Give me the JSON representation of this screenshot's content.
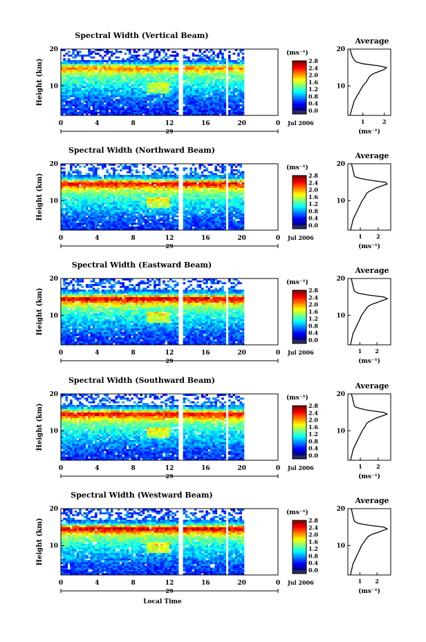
{
  "chart_data": [
    {
      "type": "heatmap",
      "title": "Spectral Width (Vertical Beam)",
      "ylabel": "Height (km)",
      "xlabel": "",
      "x_ticks": [
        "0",
        "4",
        "8",
        "12",
        "16",
        "20",
        "0"
      ],
      "y_ticks": [
        "20",
        "10"
      ],
      "date_day": "29",
      "date_label": "Jul 2006",
      "xlim": [
        0,
        24
      ],
      "ylim": [
        2,
        20
      ],
      "data_gaps_hours": [
        [
          12.9,
          13.5
        ],
        [
          18.3,
          18.6
        ],
        [
          20.2,
          24
        ]
      ],
      "colorbar": {
        "unit": "(ms⁻¹)",
        "ticks": [
          "2.8",
          "2.4",
          "2.0",
          "1.6",
          "1.2",
          "0.8",
          "0.4",
          "0.0"
        ],
        "min": 0.0,
        "max": 2.8
      },
      "profile": {
        "title": "Average",
        "xlabel": "(ms⁻¹)",
        "x_ticks": [
          "1",
          "2"
        ],
        "y_ticks": [
          "20",
          "10"
        ],
        "xlim": [
          0.3,
          2.3
        ],
        "heights": [
          2,
          3,
          4,
          5,
          6,
          7,
          8,
          9,
          10,
          11,
          12,
          12.5,
          13,
          13.5,
          14,
          14.5,
          15,
          15.5,
          16,
          16.5,
          17,
          18,
          19,
          20
        ],
        "values": [
          0.4,
          0.45,
          0.5,
          0.55,
          0.6,
          0.7,
          0.8,
          0.9,
          1.0,
          1.15,
          1.25,
          1.3,
          1.4,
          1.55,
          1.8,
          2.0,
          2.1,
          1.7,
          1.0,
          0.7,
          0.6,
          0.5,
          0.45,
          0.4
        ]
      }
    },
    {
      "type": "heatmap",
      "title": "Spectral Width (Northward Beam)",
      "ylabel": "Height (km)",
      "xlabel": "",
      "x_ticks": [
        "0",
        "4",
        "8",
        "12",
        "16",
        "20",
        "0"
      ],
      "y_ticks": [
        "20",
        "10"
      ],
      "date_day": "29",
      "date_label": "Jul 2006",
      "xlim": [
        0,
        24
      ],
      "ylim": [
        2,
        20
      ],
      "data_gaps_hours": [
        [
          12.9,
          13.5
        ],
        [
          18.3,
          18.6
        ],
        [
          20.2,
          24
        ]
      ],
      "colorbar": {
        "unit": "(ms⁻¹)",
        "ticks": [
          "2.8",
          "2.4",
          "2.0",
          "1.6",
          "1.2",
          "0.8",
          "0.4",
          "0.0"
        ],
        "min": 0.0,
        "max": 2.8
      },
      "profile": {
        "title": "Average",
        "xlabel": "(ms⁻¹)",
        "x_ticks": [
          "1",
          "2"
        ],
        "y_ticks": [
          "20",
          "10"
        ],
        "xlim": [
          0.3,
          2.7
        ],
        "heights": [
          2,
          3,
          4,
          5,
          6,
          7,
          8,
          9,
          10,
          11,
          12,
          12.5,
          13,
          13.5,
          14,
          14.5,
          15,
          15.5,
          16,
          16.5,
          17,
          18,
          19,
          20
        ],
        "values": [
          0.45,
          0.5,
          0.55,
          0.6,
          0.7,
          0.8,
          0.9,
          1.0,
          1.1,
          1.25,
          1.35,
          1.5,
          1.7,
          1.9,
          2.2,
          2.5,
          2.4,
          1.6,
          1.0,
          0.7,
          0.65,
          0.6,
          0.55,
          0.5
        ]
      }
    },
    {
      "type": "heatmap",
      "title": "Spectral Width (Eastward Beam)",
      "ylabel": "Height (km)",
      "xlabel": "",
      "x_ticks": [
        "0",
        "4",
        "8",
        "12",
        "16",
        "20",
        "0"
      ],
      "y_ticks": [
        "20",
        "10"
      ],
      "date_day": "29",
      "date_label": "Jul 2006",
      "xlim": [
        0,
        24
      ],
      "ylim": [
        2,
        20
      ],
      "data_gaps_hours": [
        [
          12.9,
          13.5
        ],
        [
          18.3,
          18.6
        ],
        [
          20.2,
          24
        ]
      ],
      "colorbar": {
        "unit": "(ms⁻¹)",
        "ticks": [
          "2.8",
          "2.4",
          "2.0",
          "1.6",
          "1.2",
          "0.8",
          "0.4",
          "0.0"
        ],
        "min": 0.0,
        "max": 2.8
      },
      "profile": {
        "title": "Average",
        "xlabel": "(ms⁻¹)",
        "x_ticks": [
          "1",
          "2"
        ],
        "y_ticks": [
          "20",
          "10"
        ],
        "xlim": [
          0.3,
          2.8
        ],
        "heights": [
          2,
          3,
          4,
          5,
          6,
          7,
          8,
          9,
          10,
          11,
          12,
          12.5,
          13,
          13.5,
          14,
          14.5,
          15,
          15.5,
          16,
          16.5,
          17,
          18,
          19,
          20
        ],
        "values": [
          0.45,
          0.5,
          0.55,
          0.6,
          0.7,
          0.8,
          0.9,
          1.0,
          1.1,
          1.25,
          1.4,
          1.5,
          1.7,
          2.0,
          2.3,
          2.6,
          2.4,
          1.5,
          0.9,
          0.7,
          0.65,
          0.6,
          0.55,
          0.5
        ]
      }
    },
    {
      "type": "heatmap",
      "title": "Spectral Width (Southward Beam)",
      "ylabel": "Height (km)",
      "xlabel": "",
      "x_ticks": [
        "0",
        "4",
        "8",
        "12",
        "16",
        "20",
        "0"
      ],
      "y_ticks": [
        "20",
        "10"
      ],
      "date_day": "29",
      "date_label": "Jul 2006",
      "xlim": [
        0,
        24
      ],
      "ylim": [
        2,
        20
      ],
      "data_gaps_hours": [
        [
          12.9,
          13.5
        ],
        [
          18.3,
          18.6
        ],
        [
          20.2,
          24
        ]
      ],
      "colorbar": {
        "unit": "(ms⁻¹)",
        "ticks": [
          "2.8",
          "2.4",
          "2.0",
          "1.6",
          "1.2",
          "0.8",
          "0.4",
          "0.0"
        ],
        "min": 0.0,
        "max": 2.8
      },
      "profile": {
        "title": "Average",
        "xlabel": "(ms⁻¹)",
        "x_ticks": [
          "1",
          "2"
        ],
        "y_ticks": [
          "20",
          "10"
        ],
        "xlim": [
          0.3,
          2.7
        ],
        "heights": [
          2,
          3,
          4,
          5,
          6,
          7,
          8,
          9,
          10,
          11,
          12,
          12.5,
          13,
          13.5,
          14,
          14.5,
          15,
          15.5,
          16,
          16.5,
          17,
          18,
          19,
          20
        ],
        "values": [
          0.45,
          0.5,
          0.55,
          0.6,
          0.7,
          0.8,
          0.9,
          1.0,
          1.1,
          1.25,
          1.35,
          1.5,
          1.7,
          1.9,
          2.2,
          2.5,
          2.3,
          1.5,
          1.0,
          0.7,
          0.65,
          0.6,
          0.55,
          0.5
        ]
      }
    },
    {
      "type": "heatmap",
      "title": "Spectral Width (Westward Beam)",
      "ylabel": "Height (km)",
      "xlabel": "Local Time",
      "x_ticks": [
        "0",
        "4",
        "8",
        "12",
        "16",
        "20",
        "0"
      ],
      "y_ticks": [
        "20",
        "10"
      ],
      "date_day": "29",
      "date_label": "Jul 2006",
      "xlim": [
        0,
        24
      ],
      "ylim": [
        2,
        20
      ],
      "data_gaps_hours": [
        [
          12.9,
          13.5
        ],
        [
          18.3,
          18.6
        ],
        [
          20.2,
          24
        ]
      ],
      "colorbar": {
        "unit": "(ms⁻¹)",
        "ticks": [
          "2.8",
          "2.4",
          "2.0",
          "1.6",
          "1.2",
          "0.8",
          "0.4",
          "0.0"
        ],
        "min": 0.0,
        "max": 2.8
      },
      "profile": {
        "title": "Average",
        "xlabel": "(ms⁻¹)",
        "x_ticks": [
          "1",
          "2"
        ],
        "y_ticks": [
          "20",
          "10"
        ],
        "xlim": [
          0.3,
          2.8
        ],
        "heights": [
          2,
          3,
          4,
          5,
          6,
          7,
          8,
          9,
          10,
          11,
          12,
          12.5,
          13,
          13.5,
          14,
          14.5,
          15,
          15.5,
          16,
          16.5,
          17,
          18,
          19,
          20
        ],
        "values": [
          0.45,
          0.5,
          0.55,
          0.6,
          0.7,
          0.8,
          0.9,
          1.0,
          1.1,
          1.25,
          1.4,
          1.5,
          1.7,
          2.0,
          2.3,
          2.6,
          2.4,
          1.5,
          0.9,
          0.7,
          0.65,
          0.6,
          0.55,
          0.5
        ]
      }
    }
  ]
}
